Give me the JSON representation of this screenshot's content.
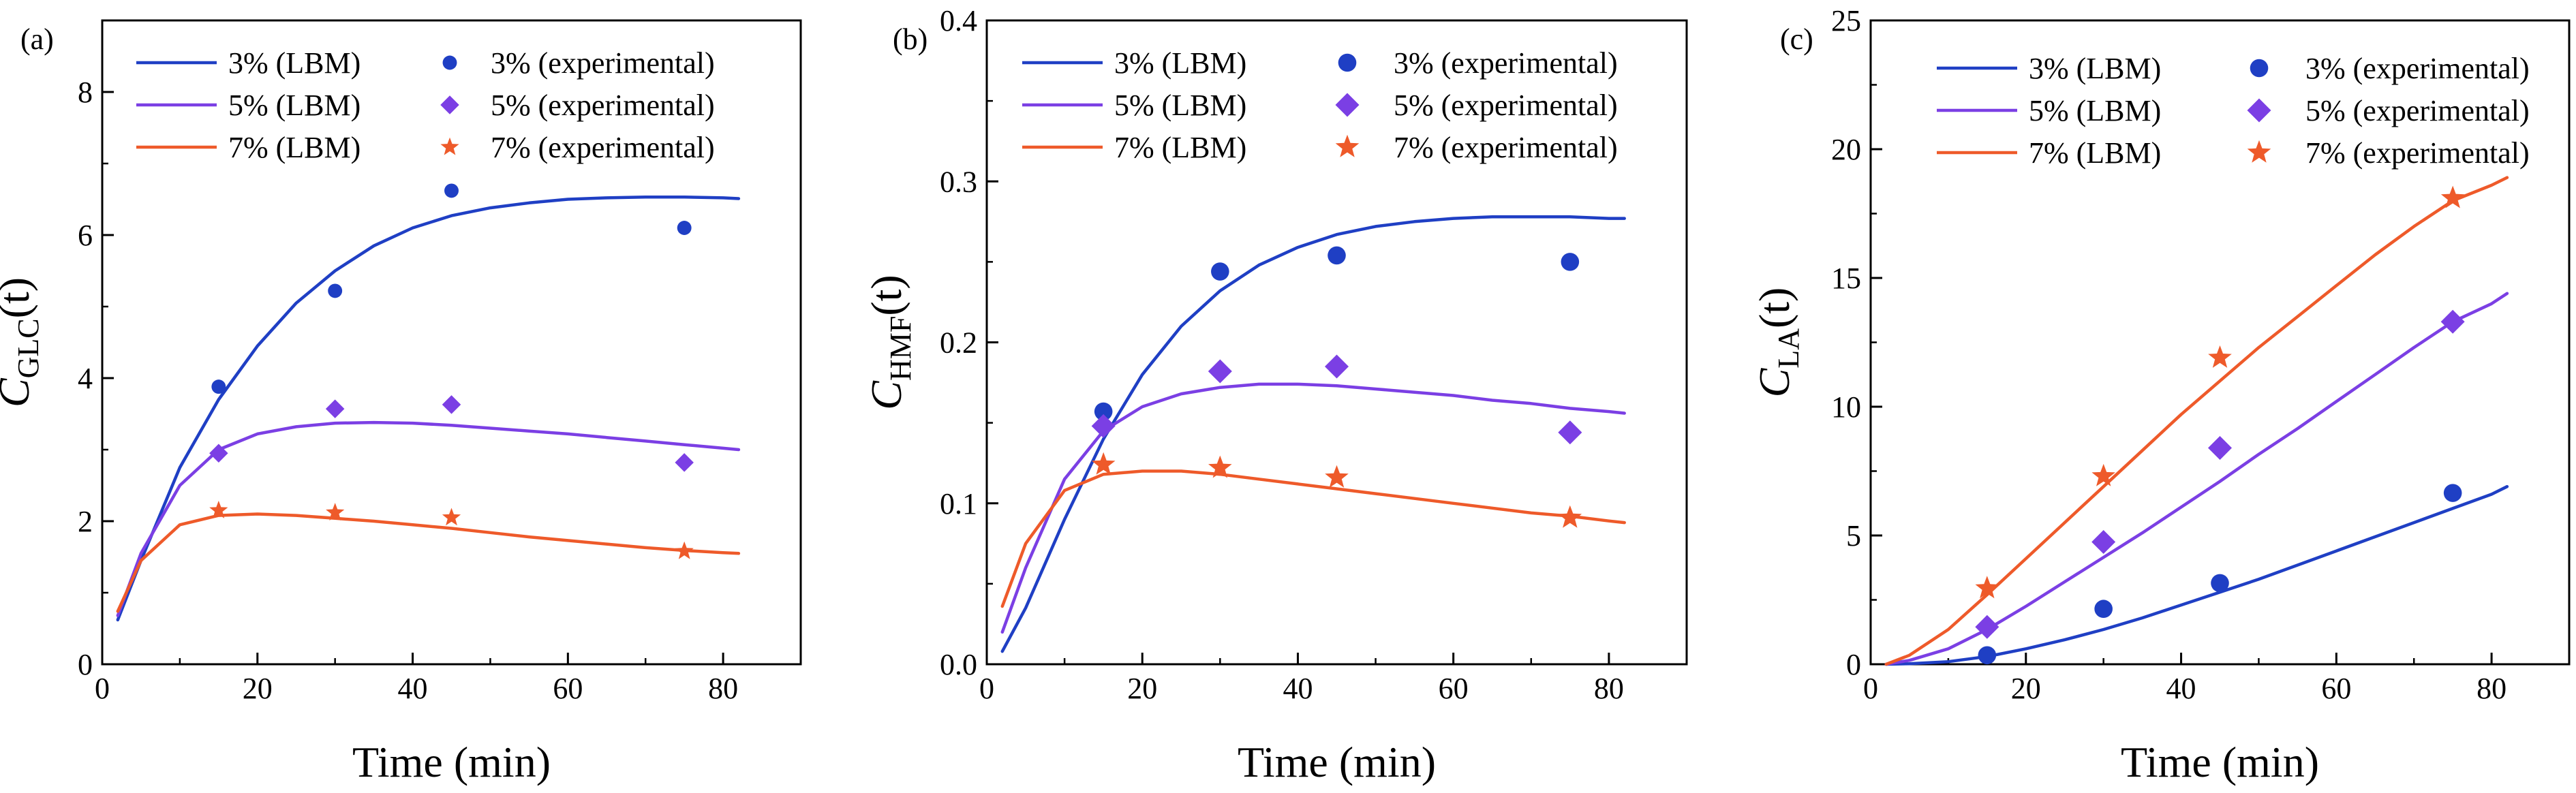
{
  "chart_data": [
    {
      "type": "line",
      "panel_label": "(a)",
      "xlabel": "Time (min)",
      "ylabel": {
        "main": "C",
        "sub": "GLC",
        "tail": "(t)"
      },
      "xlim": [
        0,
        90
      ],
      "ylim": [
        0,
        9
      ],
      "xticks": [
        0,
        20,
        40,
        60,
        80
      ],
      "yticks": [
        0,
        2,
        4,
        6,
        8
      ],
      "minor_x": 10,
      "minor_y": 1,
      "grid": false,
      "legend_position": "top-left",
      "series": [
        {
          "name": "3% (LBM)",
          "kind": "line",
          "color": "#1f3fc4",
          "x": [
            2,
            5,
            10,
            15,
            20,
            25,
            30,
            35,
            40,
            45,
            50,
            55,
            60,
            65,
            70,
            75,
            80,
            82
          ],
          "y": [
            0.62,
            1.45,
            2.75,
            3.7,
            4.45,
            5.05,
            5.5,
            5.85,
            6.1,
            6.27,
            6.38,
            6.45,
            6.5,
            6.52,
            6.53,
            6.53,
            6.52,
            6.51
          ]
        },
        {
          "name": "5% (LBM)",
          "kind": "line",
          "color": "#7b3fe4",
          "x": [
            2,
            5,
            10,
            15,
            20,
            25,
            30,
            35,
            40,
            45,
            50,
            55,
            60,
            65,
            70,
            75,
            80,
            82
          ],
          "y": [
            0.68,
            1.55,
            2.5,
            3.0,
            3.22,
            3.32,
            3.37,
            3.38,
            3.37,
            3.34,
            3.3,
            3.26,
            3.22,
            3.17,
            3.12,
            3.07,
            3.02,
            3.0
          ]
        },
        {
          "name": "7% (LBM)",
          "kind": "line",
          "color": "#ee5a2a",
          "x": [
            2,
            5,
            10,
            15,
            20,
            25,
            30,
            35,
            40,
            45,
            50,
            55,
            60,
            65,
            70,
            75,
            80,
            82
          ],
          "y": [
            0.74,
            1.45,
            1.95,
            2.08,
            2.1,
            2.08,
            2.04,
            2.0,
            1.95,
            1.9,
            1.84,
            1.78,
            1.73,
            1.68,
            1.63,
            1.59,
            1.56,
            1.55
          ]
        },
        {
          "name": "3% (experimental)",
          "kind": "scatter",
          "marker": "circle",
          "color": "#1f3fc4",
          "x": [
            15,
            30,
            45,
            75
          ],
          "y": [
            3.88,
            5.22,
            6.62,
            6.1
          ]
        },
        {
          "name": "5% (experimental)",
          "kind": "scatter",
          "marker": "diamond",
          "color": "#7b3fe4",
          "x": [
            15,
            30,
            45,
            75
          ],
          "y": [
            2.95,
            3.57,
            3.63,
            2.82
          ]
        },
        {
          "name": "7% (experimental)",
          "kind": "scatter",
          "marker": "star",
          "color": "#ee5a2a",
          "x": [
            15,
            30,
            45,
            75
          ],
          "y": [
            2.15,
            2.12,
            2.05,
            1.58
          ]
        }
      ]
    },
    {
      "type": "line",
      "panel_label": "(b)",
      "xlabel": "Time (min)",
      "ylabel": {
        "main": "C",
        "sub": "HMF",
        "tail": "(t)"
      },
      "xlim": [
        0,
        90
      ],
      "ylim": [
        0,
        0.4
      ],
      "xticks": [
        0,
        20,
        40,
        60,
        80
      ],
      "yticks": [
        0.0,
        0.1,
        0.2,
        0.3,
        0.4
      ],
      "ytick_labels": [
        "0.0",
        "0.1",
        "0.2",
        "0.3",
        "0.4"
      ],
      "minor_x": 10,
      "minor_y": 0.05,
      "grid": false,
      "legend_position": "top-left",
      "series": [
        {
          "name": "3% (LBM)",
          "kind": "line",
          "color": "#1f3fc4",
          "x": [
            2,
            5,
            10,
            15,
            20,
            25,
            30,
            35,
            40,
            45,
            50,
            55,
            60,
            65,
            70,
            75,
            80,
            82
          ],
          "y": [
            0.008,
            0.035,
            0.09,
            0.14,
            0.18,
            0.21,
            0.232,
            0.248,
            0.259,
            0.267,
            0.272,
            0.275,
            0.277,
            0.278,
            0.278,
            0.278,
            0.277,
            0.277
          ]
        },
        {
          "name": "5% (LBM)",
          "kind": "line",
          "color": "#7b3fe4",
          "x": [
            2,
            5,
            10,
            15,
            20,
            25,
            30,
            35,
            40,
            45,
            50,
            55,
            60,
            65,
            70,
            75,
            80,
            82
          ],
          "y": [
            0.02,
            0.06,
            0.115,
            0.145,
            0.16,
            0.168,
            0.172,
            0.174,
            0.174,
            0.173,
            0.171,
            0.169,
            0.167,
            0.164,
            0.162,
            0.159,
            0.157,
            0.156
          ]
        },
        {
          "name": "7% (LBM)",
          "kind": "line",
          "color": "#ee5a2a",
          "x": [
            2,
            5,
            10,
            15,
            20,
            25,
            30,
            35,
            40,
            45,
            50,
            55,
            60,
            65,
            70,
            75,
            80,
            82
          ],
          "y": [
            0.036,
            0.075,
            0.108,
            0.118,
            0.12,
            0.12,
            0.118,
            0.115,
            0.112,
            0.109,
            0.106,
            0.103,
            0.1,
            0.097,
            0.094,
            0.092,
            0.089,
            0.088
          ]
        },
        {
          "name": "3% (experimental)",
          "kind": "scatter",
          "marker": "circle",
          "color": "#1f3fc4",
          "x": [
            15,
            30,
            45,
            75
          ],
          "y": [
            0.157,
            0.244,
            0.254,
            0.25
          ]
        },
        {
          "name": "5% (experimental)",
          "kind": "scatter",
          "marker": "diamond",
          "color": "#7b3fe4",
          "x": [
            15,
            30,
            45,
            75
          ],
          "y": [
            0.148,
            0.182,
            0.185,
            0.144
          ]
        },
        {
          "name": "7% (experimental)",
          "kind": "scatter",
          "marker": "star",
          "color": "#ee5a2a",
          "x": [
            15,
            30,
            45,
            75
          ],
          "y": [
            0.124,
            0.122,
            0.116,
            0.091
          ]
        }
      ]
    },
    {
      "type": "line",
      "panel_label": "(c)",
      "xlabel": "Time (min)",
      "ylabel": {
        "main": "C",
        "sub": "LA",
        "tail": "(t)"
      },
      "xlim": [
        0,
        90
      ],
      "ylim": [
        0,
        25
      ],
      "xticks": [
        0,
        20,
        40,
        60,
        80
      ],
      "yticks": [
        0,
        5,
        10,
        15,
        20,
        25
      ],
      "minor_x": 10,
      "minor_y": 2.5,
      "grid": false,
      "legend_position": "top-left",
      "series": [
        {
          "name": "3% (LBM)",
          "kind": "line",
          "color": "#1f3fc4",
          "x": [
            2,
            5,
            10,
            15,
            20,
            25,
            30,
            35,
            40,
            45,
            50,
            55,
            60,
            65,
            70,
            75,
            80,
            82
          ],
          "y": [
            0.0,
            0.02,
            0.1,
            0.3,
            0.6,
            0.95,
            1.35,
            1.8,
            2.3,
            2.8,
            3.3,
            3.85,
            4.4,
            4.95,
            5.5,
            6.05,
            6.6,
            6.9
          ]
        },
        {
          "name": "5% (LBM)",
          "kind": "line",
          "color": "#7b3fe4",
          "x": [
            2,
            5,
            10,
            15,
            20,
            25,
            30,
            35,
            40,
            45,
            50,
            55,
            60,
            65,
            70,
            75,
            80,
            82
          ],
          "y": [
            0.0,
            0.15,
            0.6,
            1.35,
            2.25,
            3.2,
            4.15,
            5.1,
            6.1,
            7.1,
            8.15,
            9.15,
            10.2,
            11.25,
            12.3,
            13.3,
            14.0,
            14.4
          ]
        },
        {
          "name": "7% (LBM)",
          "kind": "line",
          "color": "#ee5a2a",
          "x": [
            2,
            5,
            10,
            15,
            20,
            25,
            30,
            35,
            40,
            45,
            50,
            55,
            60,
            65,
            70,
            75,
            80,
            82
          ],
          "y": [
            0.0,
            0.35,
            1.35,
            2.7,
            4.1,
            5.5,
            6.9,
            8.3,
            9.7,
            11.0,
            12.3,
            13.5,
            14.7,
            15.9,
            17.0,
            18.0,
            18.6,
            18.9
          ]
        },
        {
          "name": "3% (experimental)",
          "kind": "scatter",
          "marker": "circle",
          "color": "#1f3fc4",
          "x": [
            15,
            30,
            45,
            75
          ],
          "y": [
            0.35,
            2.15,
            3.15,
            6.65
          ]
        },
        {
          "name": "5% (experimental)",
          "kind": "scatter",
          "marker": "diamond",
          "color": "#7b3fe4",
          "x": [
            15,
            30,
            45,
            75
          ],
          "y": [
            1.45,
            4.75,
            8.4,
            13.3
          ]
        },
        {
          "name": "7% (experimental)",
          "kind": "scatter",
          "marker": "star",
          "color": "#ee5a2a",
          "x": [
            15,
            30,
            45,
            75
          ],
          "y": [
            2.95,
            7.3,
            11.9,
            18.1
          ]
        }
      ]
    }
  ]
}
